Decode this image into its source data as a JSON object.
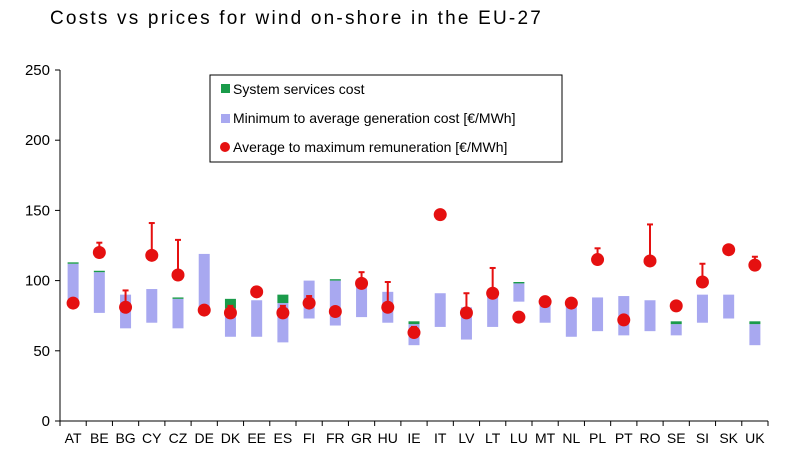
{
  "chart_data": {
    "type": "bar",
    "title": "Costs vs prices for wind on-shore in the EU-27",
    "xlabel": "",
    "ylabel": "",
    "ylim": [
      0,
      250
    ],
    "yticks": [
      0,
      50,
      100,
      150,
      200,
      250
    ],
    "grid": false,
    "legend_position": "top-center",
    "categories": [
      "AT",
      "BE",
      "BG",
      "CY",
      "CZ",
      "DE",
      "DK",
      "EE",
      "ES",
      "FI",
      "FR",
      "GR",
      "HU",
      "IE",
      "IT",
      "LV",
      "LT",
      "LU",
      "MT",
      "NL",
      "PL",
      "PT",
      "RO",
      "SE",
      "SI",
      "SK",
      "UK"
    ],
    "series": [
      {
        "name": "System services cost",
        "color": "#1a9b4a",
        "kind": "range",
        "ranges": [
          [
            112,
            113
          ],
          [
            106,
            107
          ],
          null,
          null,
          [
            87,
            88
          ],
          null,
          [
            80,
            87
          ],
          null,
          [
            84,
            90
          ],
          null,
          [
            100,
            101
          ],
          null,
          null,
          [
            69,
            71
          ],
          null,
          null,
          null,
          [
            98,
            99
          ],
          null,
          null,
          null,
          null,
          null,
          [
            69,
            71
          ],
          null,
          null,
          [
            69,
            71
          ]
        ]
      },
      {
        "name": "Minimum to average generation cost [€/MWh]",
        "color": "#a8a8f0",
        "kind": "range",
        "ranges": [
          [
            84,
            112
          ],
          [
            77,
            106
          ],
          [
            66,
            90
          ],
          [
            70,
            94
          ],
          [
            66,
            87
          ],
          [
            80,
            119
          ],
          [
            60,
            80
          ],
          [
            60,
            86
          ],
          [
            56,
            84
          ],
          [
            73,
            100
          ],
          [
            68,
            100
          ],
          [
            74,
            99
          ],
          [
            70,
            92
          ],
          [
            54,
            69
          ],
          [
            67,
            91
          ],
          [
            58,
            81
          ],
          [
            67,
            89
          ],
          [
            85,
            98
          ],
          [
            70,
            85
          ],
          [
            60,
            84
          ],
          [
            64,
            88
          ],
          [
            61,
            89
          ],
          [
            64,
            86
          ],
          [
            61,
            69
          ],
          [
            70,
            90
          ],
          [
            73,
            90
          ],
          [
            54,
            69
          ]
        ]
      },
      {
        "name": "Average to maximum remuneration [€/MWh]",
        "color": "#e51010",
        "kind": "point-range",
        "points": [
          [
            84,
            84
          ],
          [
            120,
            127
          ],
          [
            81,
            93
          ],
          [
            118,
            141
          ],
          [
            104,
            129
          ],
          [
            79,
            79
          ],
          [
            77,
            82
          ],
          [
            92,
            92
          ],
          [
            77,
            82
          ],
          [
            84,
            89
          ],
          [
            78,
            78
          ],
          [
            98,
            106
          ],
          [
            81,
            99
          ],
          [
            63,
            67
          ],
          [
            147,
            147
          ],
          [
            77,
            91
          ],
          [
            91,
            109
          ],
          [
            74,
            74
          ],
          [
            85,
            85
          ],
          [
            84,
            84
          ],
          [
            115,
            123
          ],
          [
            72,
            72
          ],
          [
            114,
            140
          ],
          [
            82,
            82
          ],
          [
            99,
            112
          ],
          [
            122,
            122
          ],
          [
            111,
            117
          ]
        ]
      }
    ]
  }
}
